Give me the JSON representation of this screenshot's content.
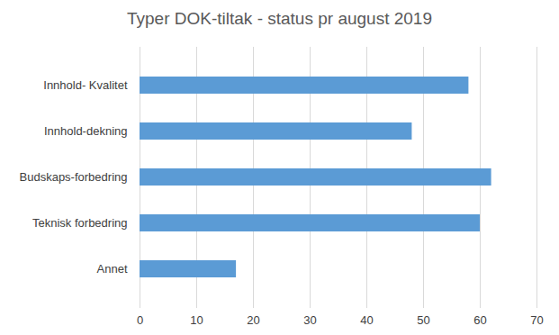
{
  "chart_data": {
    "type": "bar",
    "title": "Typer DOK-tiltak - status pr august 2019",
    "orientation": "horizontal",
    "categories": [
      "Innhold- Kvalitet",
      "Innhold-dekning",
      "Budskaps-forbedring",
      "Teknisk forbedring",
      "Annet"
    ],
    "values": [
      58,
      48,
      62,
      60,
      17
    ],
    "color": "#5b9bd5",
    "xlim": [
      0,
      70
    ],
    "xticks": [
      0,
      10,
      20,
      30,
      40,
      50,
      60,
      70
    ],
    "grid": true
  }
}
